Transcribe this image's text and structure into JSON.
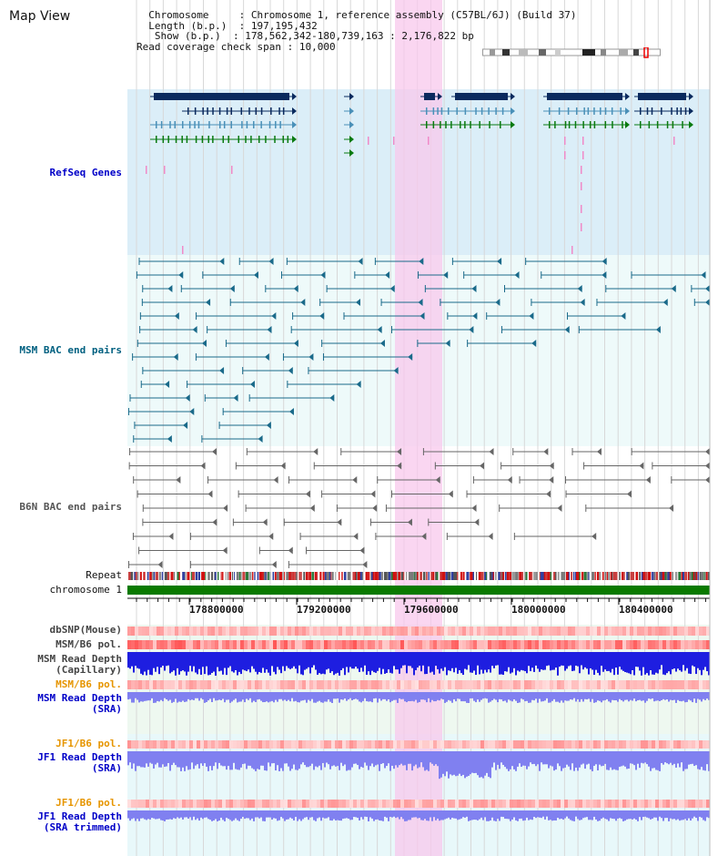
{
  "view_title": "Map View",
  "info": {
    "chromosome_label": "Chromosome",
    "chromosome_value": "Chromosome 1, reference assembly (C57BL/6J) (Build 37)",
    "length_label": "Length (b.p.)",
    "length_value": "197,195,432",
    "show_label": "Show (b.p.)",
    "show_value": "178,562,342-180,739,163 : 2,176,822 bp",
    "coverage_label": "Read coverage check span",
    "coverage_value": "10,000"
  },
  "tracks": {
    "refseq": "RefSeq Genes",
    "msm_bac": "MSM BAC end pairs",
    "b6n_bac": "B6N BAC end pairs",
    "repeat": "Repeat",
    "chromosome": "chromosome 1",
    "dbsnp": "dbSNP(Mouse)",
    "msm_b6_pol_1": "MSM/B6 pol.",
    "msm_read_depth_cap_1": "MSM Read Depth",
    "msm_read_depth_cap_2": "(Capillary)",
    "msm_b6_pol_2": "MSM/B6 pol.",
    "msm_read_depth_sra_1": "MSM Read Depth",
    "msm_read_depth_sra_2": "(SRA)",
    "jf1_b6_pol_1": "JF1/B6 pol.",
    "jf1_read_depth_1": "JF1 Read Depth",
    "jf1_read_depth_2": "(SRA)",
    "jf1_b6_pol_2": "JF1/B6 pol.",
    "jf1_trimmed_1": "JF1 Read Depth",
    "jf1_trimmed_2": "(SRA trimmed)"
  },
  "axis_ticks": [
    "178800000",
    "179200000",
    "179600000",
    "180000000",
    "180400000"
  ],
  "colors": {
    "refseq_bg": "#dbeef8",
    "msm_bg": "#eefafa",
    "gene_navy": "#0a2a5e",
    "gene_steel": "#4a90b8",
    "gene_green": "#0a7a10",
    "highlight": "#f8c8ec",
    "chromosome_green": "#0a7a00",
    "depth_blue": "#1e1ee0",
    "depth_light": "#8080f0",
    "pol_red": "#ff5050"
  }
}
